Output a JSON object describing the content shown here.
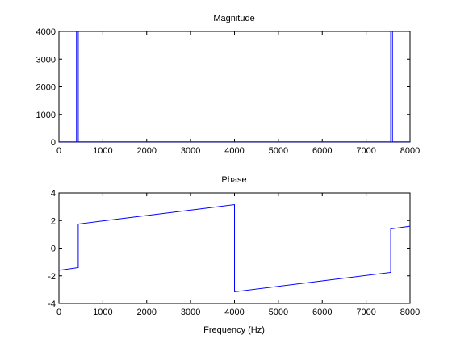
{
  "chart_data": [
    {
      "type": "line",
      "title": "Magnitude",
      "xlabel": "",
      "ylabel": "",
      "xlim": [
        0,
        8000
      ],
      "ylim": [
        0,
        4000
      ],
      "xticks": [
        0,
        1000,
        2000,
        3000,
        4000,
        5000,
        6000,
        7000,
        8000
      ],
      "yticks": [
        0,
        1000,
        2000,
        3000,
        4000
      ],
      "grid": false,
      "line_color": "#0000ff",
      "series": [
        {
          "x": [
            0,
            400,
            400,
            440,
            440,
            7560,
            7560,
            7600,
            7600,
            8000
          ],
          "y": [
            8,
            8,
            4000,
            4000,
            8,
            8,
            4000,
            4000,
            8,
            8
          ]
        }
      ]
    },
    {
      "type": "line",
      "title": "Phase",
      "xlabel": "Frequency (Hz)",
      "ylabel": "",
      "xlim": [
        0,
        8000
      ],
      "ylim": [
        -4,
        4
      ],
      "xticks": [
        0,
        1000,
        2000,
        3000,
        4000,
        5000,
        6000,
        7000,
        8000
      ],
      "yticks": [
        -4,
        -2,
        0,
        2,
        4
      ],
      "grid": false,
      "line_color": "#0000ff",
      "series": [
        {
          "x": [
            0,
            440,
            440,
            4000,
            4000,
            7560,
            7560,
            8000
          ],
          "y": [
            -1.6,
            -1.4,
            1.75,
            3.15,
            -3.15,
            -1.75,
            1.4,
            1.6
          ]
        }
      ]
    }
  ]
}
